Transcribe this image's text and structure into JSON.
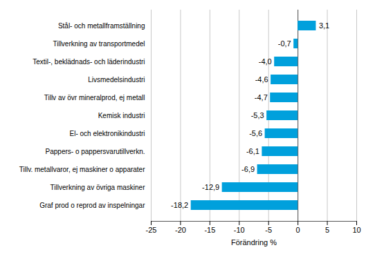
{
  "chart_data": {
    "type": "bar",
    "orientation": "horizontal",
    "categories": [
      "Stål- och metallframställning",
      "Tillverkning av transportmedel",
      "Textil-, beklädnads- och läderindustri",
      "Livsmedelsindustri",
      "Tillv av övr mineralprod, ej metall",
      "Kemisk industri",
      "El- och elektronikindustri",
      "Pappers- o pappersvarutillverkn.",
      "Tillv. metallvaror, ej maskiner o apparater",
      "Tillverkning av övriga maskiner",
      "Graf prod o reprod av inspelningar"
    ],
    "values": [
      3.1,
      -0.7,
      -4.0,
      -4.6,
      -4.7,
      -5.3,
      -5.6,
      -6.1,
      -6.9,
      -12.9,
      -18.2
    ],
    "value_labels": [
      "3,1",
      "-0,7",
      "-4,0",
      "-4,6",
      "-4,7",
      "-5,3",
      "-5,6",
      "-6,1",
      "-6,9",
      "-12,9",
      "-18,2"
    ],
    "data_labels": true,
    "color": "#00a0dc",
    "x_label": "Förändring %",
    "xlim": [
      -25,
      10
    ],
    "xticks": [
      -25,
      -20,
      -15,
      -10,
      -5,
      0,
      5,
      10
    ],
    "grid": true
  }
}
